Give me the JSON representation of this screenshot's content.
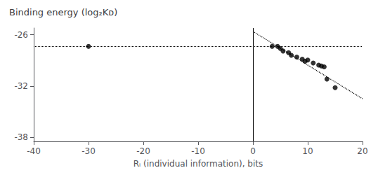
{
  "chart_data": {
    "type": "scatter",
    "title": "Binding energy (log₂Κᴅ)",
    "x_label": "Rᵢ (individual information), bits",
    "xlim": [
      -40,
      20
    ],
    "xticks": [
      -40,
      -30,
      -20,
      -10,
      0,
      10,
      20
    ],
    "ylim": [
      -38.5,
      -25.2
    ],
    "yticks": [
      -38,
      -32,
      -26
    ],
    "grid": false,
    "series": [
      {
        "color": "#000000",
        "marker": "circle",
        "x": [
          -30
        ],
        "values": [
          -27.35
        ]
      },
      {
        "color": "#000000",
        "marker": "circle",
        "x": [
          3.5,
          4.5,
          5.0,
          5.5,
          6.5,
          7.0,
          8.0,
          9.0,
          9.5,
          10.0,
          11.0,
          12.0,
          12.5,
          13.0,
          13.5,
          15.0
        ],
        "values": [
          -27.35,
          -27.35,
          -27.6,
          -27.9,
          -28.1,
          -28.4,
          -28.6,
          -28.85,
          -29.1,
          -28.95,
          -29.3,
          -29.55,
          -29.65,
          -29.75,
          -31.2,
          -32.2
        ]
      }
    ],
    "reference_lines": [
      {
        "type": "horizontal",
        "y": -27.35,
        "color": "#000000",
        "line_style": "dotted"
      },
      {
        "type": "vertical",
        "x": 0,
        "color": "#000000",
        "line_style": "solid"
      },
      {
        "type": "segment",
        "x": [
          0,
          20
        ],
        "values": [
          -25.6,
          -33.5
        ],
        "color": "#000000",
        "line_style": "dotted"
      }
    ]
  }
}
